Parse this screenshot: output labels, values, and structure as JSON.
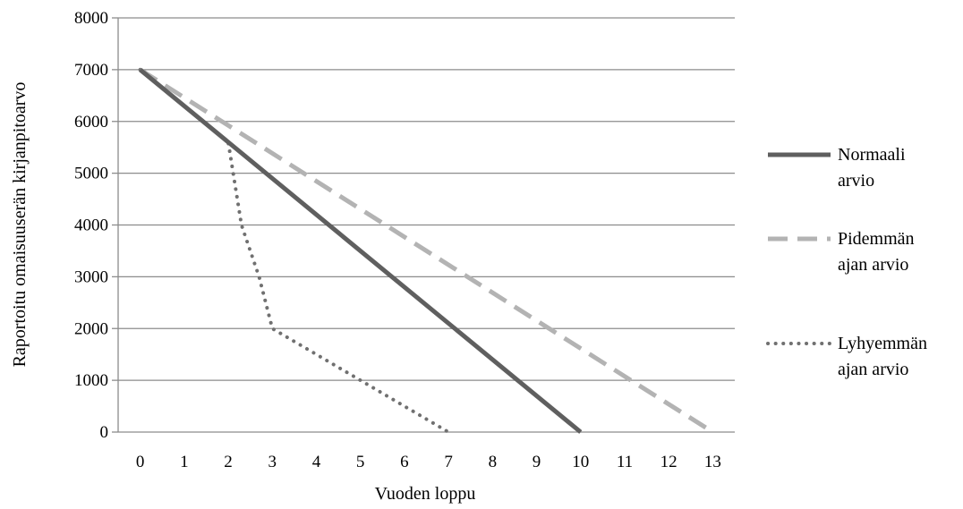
{
  "chart_data": {
    "type": "line",
    "title": "",
    "xlabel": "Vuoden loppu",
    "ylabel": "Raportoitu omaisuuserän kirjanpitoarvo",
    "x_ticks": [
      "0",
      "1",
      "2",
      "3",
      "4",
      "5",
      "6",
      "7",
      "8",
      "9",
      "10",
      "11",
      "12",
      "13"
    ],
    "y_ticks": [
      "0",
      "1000",
      "2000",
      "3000",
      "4000",
      "5000",
      "6000",
      "7000",
      "8000"
    ],
    "xlim": [
      -0.5,
      13.5
    ],
    "ylim": [
      0,
      8000
    ],
    "grid": "horizontal",
    "legend_position": "right",
    "series": [
      {
        "name_lines": [
          "Normaali",
          "arvio"
        ],
        "style": "solid",
        "color": "#5f5f5f",
        "x": [
          0,
          10
        ],
        "y": [
          7000,
          0
        ]
      },
      {
        "name_lines": [
          "Pidemmän",
          "ajan arvio"
        ],
        "style": "dashed",
        "color": "#b3b3b3",
        "x": [
          0,
          13
        ],
        "y": [
          7000,
          0
        ]
      },
      {
        "name_lines": [
          "Lyhyemmän",
          "ajan arvio"
        ],
        "style": "dotted",
        "color": "#707070",
        "x": [
          0,
          1,
          2,
          2.3,
          2.7,
          3,
          4,
          5,
          6,
          7
        ],
        "y": [
          7000,
          6300,
          5600,
          4000,
          3000,
          2000,
          1500,
          1000,
          500,
          0
        ]
      }
    ]
  }
}
